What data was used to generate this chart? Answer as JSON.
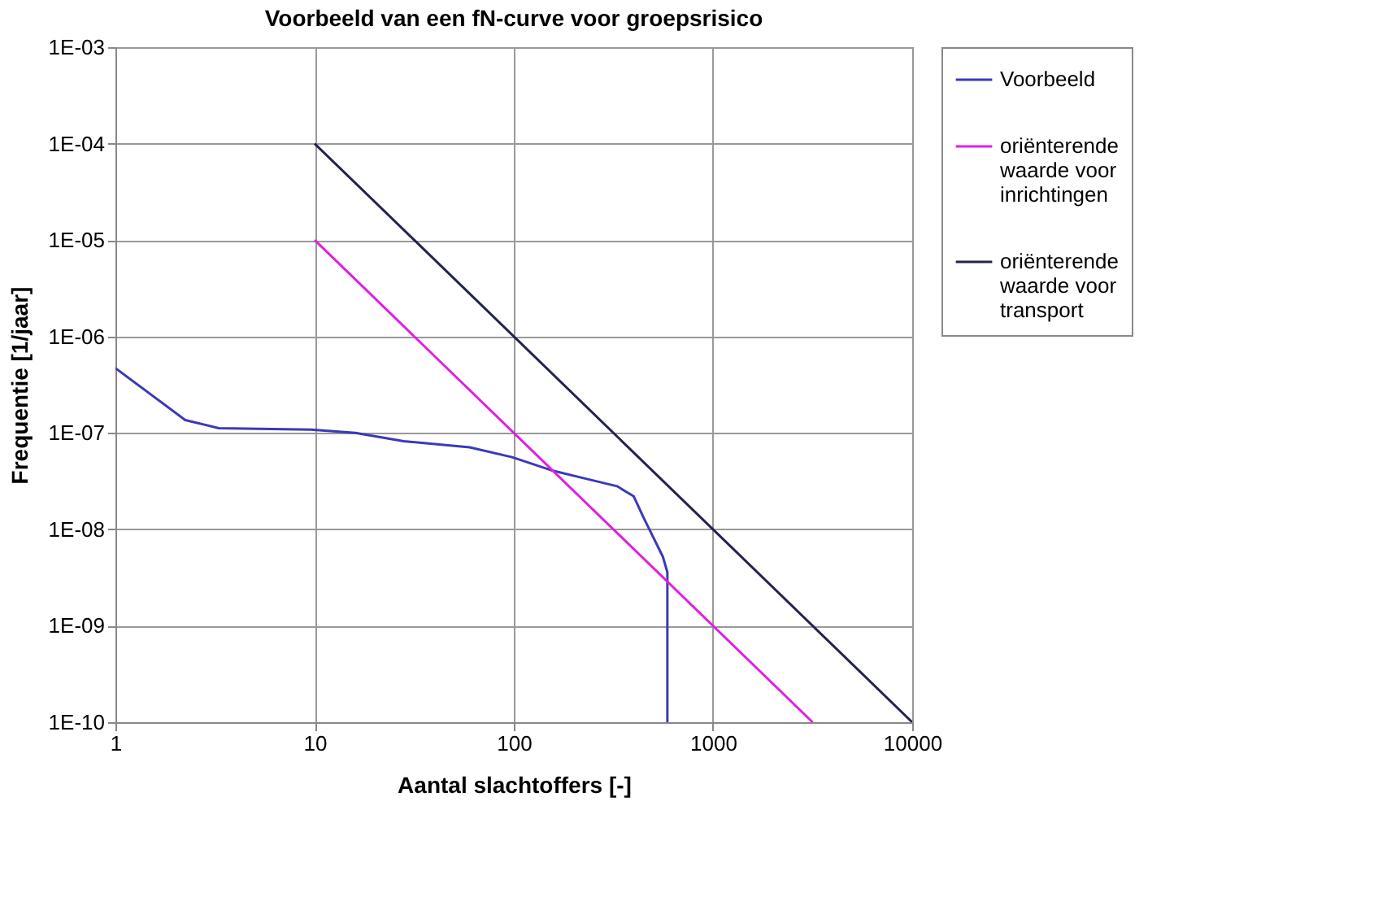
{
  "chart_data": {
    "type": "line",
    "title": "Voorbeeld van een  fN-curve voor groepsrisico",
    "xlabel": "Aantal slachtoffers [-]",
    "ylabel": "Frequentie [1/jaar]",
    "series": [
      {
        "name": "Voorbeeld",
        "color": "#3a3ab8",
        "x": [
          1,
          2.24,
          3.3,
          9.6,
          16,
          28,
          60,
          98,
          154,
          237,
          330,
          400,
          450,
          560,
          590,
          590
        ],
        "values": [
          4.7e-07,
          1.36e-07,
          1.12e-07,
          1.08e-07,
          1e-07,
          8.2e-08,
          7.1e-08,
          5.6e-08,
          4.1e-08,
          3.3e-08,
          2.8e-08,
          2.2e-08,
          1.3e-08,
          5.2e-09,
          3.6e-09,
          1e-10
        ]
      },
      {
        "name": "oriënterende waarde voor inrichtingen",
        "color": "#e020e0",
        "x": [
          10,
          3162
        ],
        "values": [
          1e-05,
          1e-10
        ]
      },
      {
        "name": "oriënterende waarde voor transport",
        "color": "#23234f",
        "x": [
          10,
          10000
        ],
        "values": [
          0.0001,
          1e-10
        ]
      }
    ],
    "log": "xy",
    "xlim": [
      1,
      10000
    ],
    "xticks": [
      1,
      10,
      100,
      1000,
      10000
    ],
    "ylim": [
      1e-10,
      0.001
    ],
    "yticks": [
      {
        "value": 1e-10,
        "label": "1E-10"
      },
      {
        "value": 1e-09,
        "label": "1E-09"
      },
      {
        "value": 1e-08,
        "label": "1E-08"
      },
      {
        "value": 1e-07,
        "label": "1E-07"
      },
      {
        "value": 1e-06,
        "label": "1E-06"
      },
      {
        "value": 1e-05,
        "label": "1E-05"
      },
      {
        "value": 0.0001,
        "label": "1E-04"
      },
      {
        "value": 0.001,
        "label": "1E-03"
      }
    ],
    "grid": true,
    "legend": "right",
    "marker": "none",
    "line_style": "solid"
  }
}
